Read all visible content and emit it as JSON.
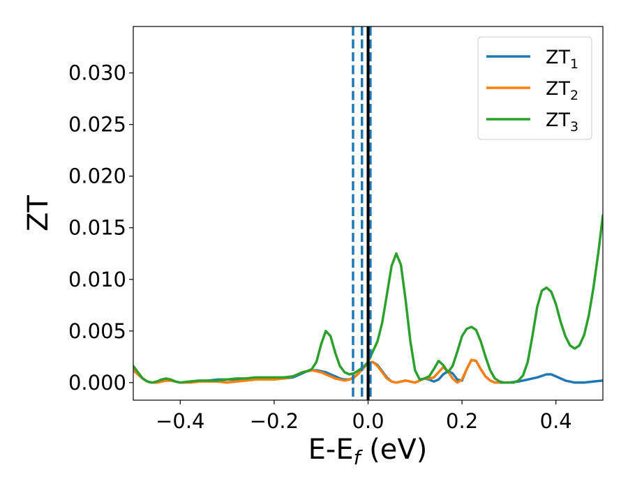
{
  "chart_data": {
    "type": "line",
    "title": "",
    "xlabel": {
      "main": "E-E",
      "sub": "f",
      "suffix": " (eV)"
    },
    "ylabel": "ZT",
    "xlim": [
      -0.5,
      0.5
    ],
    "ylim": [
      -0.0017,
      0.0345
    ],
    "xticks": [
      {
        "value": -0.4,
        "label": "−0.4"
      },
      {
        "value": -0.2,
        "label": "−0.2"
      },
      {
        "value": 0.0,
        "label": "0.0"
      },
      {
        "value": 0.2,
        "label": "0.2"
      },
      {
        "value": 0.4,
        "label": "0.4"
      }
    ],
    "yticks": [
      {
        "value": 0.0,
        "label": "0.000"
      },
      {
        "value": 0.005,
        "label": "0.005"
      },
      {
        "value": 0.01,
        "label": "0.010"
      },
      {
        "value": 0.015,
        "label": "0.015"
      },
      {
        "value": 0.02,
        "label": "0.020"
      },
      {
        "value": 0.025,
        "label": "0.025"
      },
      {
        "value": 0.03,
        "label": "0.030"
      }
    ],
    "grid": false,
    "legend_position": "top-right",
    "vlines": [
      {
        "x": -0.032,
        "style": "dashed",
        "color": "#1f77b4"
      },
      {
        "x": -0.013,
        "style": "dashed",
        "color": "#1f77b4"
      },
      {
        "x": 0.005,
        "style": "dashed",
        "color": "#1f77b4"
      },
      {
        "x": 0.0,
        "style": "solid",
        "color": "#000000"
      }
    ],
    "series": [
      {
        "name": "ZT",
        "name_sub": "1",
        "color": "#1f77b4",
        "points": [
          [
            -0.5,
            0.0012
          ],
          [
            -0.49,
            0.0008
          ],
          [
            -0.48,
            0.0004
          ],
          [
            -0.47,
            0.0001
          ],
          [
            -0.46,
            0.0
          ],
          [
            -0.45,
            0.0
          ],
          [
            -0.44,
            0.0001
          ],
          [
            -0.43,
            0.0002
          ],
          [
            -0.42,
            0.0002
          ],
          [
            -0.41,
            0.0001
          ],
          [
            -0.4,
            0.0
          ],
          [
            -0.38,
            0.0
          ],
          [
            -0.36,
            0.0001
          ],
          [
            -0.34,
            0.0002
          ],
          [
            -0.32,
            0.0003
          ],
          [
            -0.3,
            0.0003
          ],
          [
            -0.28,
            0.0003
          ],
          [
            -0.26,
            0.0003
          ],
          [
            -0.24,
            0.0004
          ],
          [
            -0.22,
            0.0004
          ],
          [
            -0.2,
            0.0004
          ],
          [
            -0.18,
            0.0004
          ],
          [
            -0.16,
            0.0005
          ],
          [
            -0.15,
            0.0007
          ],
          [
            -0.14,
            0.0009
          ],
          [
            -0.13,
            0.0011
          ],
          [
            -0.12,
            0.0012
          ],
          [
            -0.11,
            0.0012
          ],
          [
            -0.1,
            0.0011
          ],
          [
            -0.09,
            0.001
          ],
          [
            -0.08,
            0.0008
          ],
          [
            -0.07,
            0.0006
          ],
          [
            -0.06,
            0.0004
          ],
          [
            -0.05,
            0.0003
          ],
          [
            -0.04,
            0.0003
          ],
          [
            -0.03,
            0.0005
          ],
          [
            -0.02,
            0.0009
          ],
          [
            -0.01,
            0.0014
          ],
          [
            0.0,
            0.0019
          ],
          [
            0.01,
            0.002
          ],
          [
            0.02,
            0.0017
          ],
          [
            0.03,
            0.0011
          ],
          [
            0.04,
            0.0005
          ],
          [
            0.05,
            0.0001
          ],
          [
            0.06,
            0.0
          ],
          [
            0.07,
            0.0001
          ],
          [
            0.08,
            0.0002
          ],
          [
            0.09,
            0.0001
          ],
          [
            0.1,
            0.0
          ],
          [
            0.11,
            0.0002
          ],
          [
            0.12,
            0.0004
          ],
          [
            0.13,
            0.0003
          ],
          [
            0.14,
            0.0001
          ],
          [
            0.15,
            0.0003
          ],
          [
            0.16,
            0.0008
          ],
          [
            0.17,
            0.0011
          ],
          [
            0.18,
            0.0009
          ],
          [
            0.19,
            0.0003
          ],
          [
            0.2,
            0.0002
          ],
          [
            0.21,
            0.0013
          ],
          [
            0.22,
            0.0022
          ],
          [
            0.23,
            0.0021
          ],
          [
            0.24,
            0.0013
          ],
          [
            0.25,
            0.0006
          ],
          [
            0.26,
            0.0002
          ],
          [
            0.27,
            0.0
          ],
          [
            0.28,
            0.0
          ],
          [
            0.3,
            0.0
          ],
          [
            0.32,
            0.0001
          ],
          [
            0.34,
            0.0003
          ],
          [
            0.36,
            0.0005
          ],
          [
            0.38,
            0.0008
          ],
          [
            0.39,
            0.0008
          ],
          [
            0.4,
            0.0006
          ],
          [
            0.42,
            0.0002
          ],
          [
            0.44,
            0.0
          ],
          [
            0.46,
            0.0
          ],
          [
            0.48,
            0.0001
          ],
          [
            0.5,
            0.0002
          ]
        ]
      },
      {
        "name": "ZT",
        "name_sub": "2",
        "color": "#ff7f0e",
        "points": [
          [
            -0.5,
            0.0012
          ],
          [
            -0.49,
            0.0008
          ],
          [
            -0.48,
            0.0004
          ],
          [
            -0.47,
            0.0001
          ],
          [
            -0.46,
            0.0
          ],
          [
            -0.45,
            0.0
          ],
          [
            -0.44,
            0.0001
          ],
          [
            -0.43,
            0.0002
          ],
          [
            -0.42,
            0.0002
          ],
          [
            -0.41,
            0.0001
          ],
          [
            -0.4,
            0.0
          ],
          [
            -0.38,
            0.0
          ],
          [
            -0.36,
            0.0001
          ],
          [
            -0.34,
            0.0001
          ],
          [
            -0.32,
            0.0001
          ],
          [
            -0.3,
            0.0
          ],
          [
            -0.28,
            0.0001
          ],
          [
            -0.26,
            0.0002
          ],
          [
            -0.24,
            0.0003
          ],
          [
            -0.22,
            0.0003
          ],
          [
            -0.2,
            0.0003
          ],
          [
            -0.18,
            0.0004
          ],
          [
            -0.16,
            0.0006
          ],
          [
            -0.15,
            0.0008
          ],
          [
            -0.14,
            0.001
          ],
          [
            -0.13,
            0.0011
          ],
          [
            -0.12,
            0.0012
          ],
          [
            -0.11,
            0.0011
          ],
          [
            -0.1,
            0.001
          ],
          [
            -0.09,
            0.0008
          ],
          [
            -0.08,
            0.0006
          ],
          [
            -0.07,
            0.0004
          ],
          [
            -0.06,
            0.0003
          ],
          [
            -0.05,
            0.0002
          ],
          [
            -0.04,
            0.0003
          ],
          [
            -0.03,
            0.0005
          ],
          [
            -0.02,
            0.0009
          ],
          [
            -0.01,
            0.0014
          ],
          [
            0.0,
            0.0019
          ],
          [
            0.01,
            0.002
          ],
          [
            0.02,
            0.0016
          ],
          [
            0.03,
            0.001
          ],
          [
            0.04,
            0.0004
          ],
          [
            0.05,
            0.0001
          ],
          [
            0.06,
            0.0
          ],
          [
            0.07,
            0.0001
          ],
          [
            0.08,
            0.0002
          ],
          [
            0.09,
            0.0001
          ],
          [
            0.1,
            0.0
          ],
          [
            0.11,
            0.0002
          ],
          [
            0.12,
            0.0004
          ],
          [
            0.13,
            0.0004
          ],
          [
            0.14,
            0.0005
          ],
          [
            0.15,
            0.001
          ],
          [
            0.16,
            0.0015
          ],
          [
            0.17,
            0.0011
          ],
          [
            0.18,
            0.0004
          ],
          [
            0.19,
            0.0
          ],
          [
            0.2,
            0.0003
          ],
          [
            0.21,
            0.0013
          ],
          [
            0.22,
            0.0022
          ],
          [
            0.23,
            0.0021
          ],
          [
            0.24,
            0.0013
          ],
          [
            0.25,
            0.0006
          ],
          [
            0.26,
            0.0002
          ],
          [
            0.27,
            0.0
          ],
          [
            0.28,
            0.0
          ]
        ]
      },
      {
        "name": "ZT",
        "name_sub": "3",
        "color": "#2ca02c",
        "points": [
          [
            -0.5,
            0.0016
          ],
          [
            -0.49,
            0.001
          ],
          [
            -0.48,
            0.0004
          ],
          [
            -0.47,
            0.0001
          ],
          [
            -0.46,
            0.0
          ],
          [
            -0.45,
            0.0001
          ],
          [
            -0.44,
            0.0003
          ],
          [
            -0.43,
            0.0004
          ],
          [
            -0.42,
            0.0003
          ],
          [
            -0.41,
            0.0001
          ],
          [
            -0.4,
            0.0
          ],
          [
            -0.38,
            0.0001
          ],
          [
            -0.36,
            0.0002
          ],
          [
            -0.34,
            0.0002
          ],
          [
            -0.32,
            0.0002
          ],
          [
            -0.3,
            0.0003
          ],
          [
            -0.28,
            0.0004
          ],
          [
            -0.26,
            0.0004
          ],
          [
            -0.24,
            0.0005
          ],
          [
            -0.22,
            0.0005
          ],
          [
            -0.2,
            0.0005
          ],
          [
            -0.18,
            0.0005
          ],
          [
            -0.16,
            0.0006
          ],
          [
            -0.15,
            0.0008
          ],
          [
            -0.14,
            0.001
          ],
          [
            -0.13,
            0.0011
          ],
          [
            -0.12,
            0.0013
          ],
          [
            -0.11,
            0.002
          ],
          [
            -0.1,
            0.0037
          ],
          [
            -0.09,
            0.005
          ],
          [
            -0.08,
            0.0045
          ],
          [
            -0.07,
            0.0029
          ],
          [
            -0.06,
            0.0016
          ],
          [
            -0.05,
            0.001
          ],
          [
            -0.04,
            0.0008
          ],
          [
            -0.03,
            0.0009
          ],
          [
            -0.02,
            0.0012
          ],
          [
            -0.01,
            0.0015
          ],
          [
            0.0,
            0.002
          ],
          [
            0.01,
            0.003
          ],
          [
            0.02,
            0.004
          ],
          [
            0.03,
            0.0058
          ],
          [
            0.04,
            0.0085
          ],
          [
            0.05,
            0.0113
          ],
          [
            0.06,
            0.0125
          ],
          [
            0.07,
            0.0114
          ],
          [
            0.08,
            0.008
          ],
          [
            0.09,
            0.004
          ],
          [
            0.1,
            0.0012
          ],
          [
            0.11,
            0.0003
          ],
          [
            0.12,
            0.0004
          ],
          [
            0.13,
            0.0006
          ],
          [
            0.14,
            0.0013
          ],
          [
            0.15,
            0.0021
          ],
          [
            0.16,
            0.0017
          ],
          [
            0.17,
            0.001
          ],
          [
            0.18,
            0.0016
          ],
          [
            0.19,
            0.003
          ],
          [
            0.2,
            0.0045
          ],
          [
            0.21,
            0.0052
          ],
          [
            0.22,
            0.0054
          ],
          [
            0.23,
            0.0051
          ],
          [
            0.24,
            0.004
          ],
          [
            0.25,
            0.0025
          ],
          [
            0.26,
            0.0012
          ],
          [
            0.27,
            0.0004
          ],
          [
            0.28,
            0.0001
          ],
          [
            0.29,
            0.0
          ],
          [
            0.3,
            0.0
          ],
          [
            0.31,
            0.0
          ],
          [
            0.32,
            0.0002
          ],
          [
            0.33,
            0.0007
          ],
          [
            0.34,
            0.002
          ],
          [
            0.35,
            0.0045
          ],
          [
            0.36,
            0.0073
          ],
          [
            0.37,
            0.0089
          ],
          [
            0.38,
            0.0092
          ],
          [
            0.39,
            0.0088
          ],
          [
            0.4,
            0.0076
          ],
          [
            0.41,
            0.0059
          ],
          [
            0.42,
            0.0045
          ],
          [
            0.43,
            0.0036
          ],
          [
            0.44,
            0.0033
          ],
          [
            0.45,
            0.0036
          ],
          [
            0.46,
            0.0046
          ],
          [
            0.47,
            0.0065
          ],
          [
            0.48,
            0.0092
          ],
          [
            0.49,
            0.0125
          ],
          [
            0.5,
            0.0162
          ]
        ]
      }
    ]
  }
}
